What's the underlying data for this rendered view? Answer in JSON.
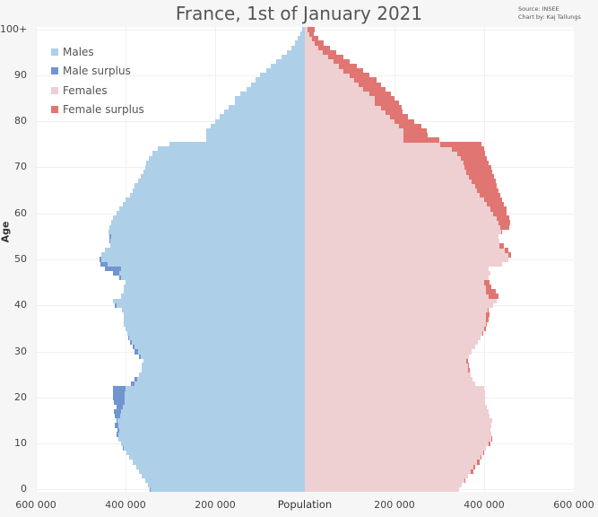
{
  "chart_data": {
    "type": "bar",
    "subtype": "population-pyramid",
    "title": "France, 1st of January 2021",
    "source_note": [
      "Source: INSEE",
      "Chart by: Kaj Tallungs"
    ],
    "xlabel": "Population",
    "ylabel": "Age",
    "x_ticks": [
      "600 000",
      "400 000",
      "200 000",
      "200 000",
      "400 000",
      "600 000"
    ],
    "x_tick_values": [
      -600000,
      -400000,
      -200000,
      200000,
      400000,
      600000
    ],
    "xlim": [
      -600000,
      600000
    ],
    "y_ticks": [
      "0",
      "10",
      "20",
      "30",
      "40",
      "50",
      "60",
      "70",
      "80",
      "90",
      "100+"
    ],
    "y_tick_values": [
      0,
      10,
      20,
      30,
      40,
      50,
      60,
      70,
      80,
      90,
      100
    ],
    "grid": true,
    "legend": [
      {
        "label": "Males",
        "color": "#aecfe8"
      },
      {
        "label": "Male surplus",
        "color": "#7195cf"
      },
      {
        "label": "Females",
        "color": "#eecfd2"
      },
      {
        "label": "Female surplus",
        "color": "#e07572"
      }
    ],
    "legend_position": "upper-left",
    "units": "persons (thousands in arrays)",
    "ages": [
      0,
      1,
      2,
      3,
      4,
      5,
      6,
      7,
      8,
      9,
      10,
      11,
      12,
      13,
      14,
      15,
      16,
      17,
      18,
      19,
      20,
      21,
      22,
      23,
      24,
      25,
      26,
      27,
      28,
      29,
      30,
      31,
      32,
      33,
      34,
      35,
      36,
      37,
      38,
      39,
      40,
      41,
      42,
      43,
      44,
      45,
      46,
      47,
      48,
      49,
      50,
      51,
      52,
      53,
      54,
      55,
      56,
      57,
      58,
      59,
      60,
      61,
      62,
      63,
      64,
      65,
      66,
      67,
      68,
      69,
      70,
      71,
      72,
      73,
      74,
      75,
      76,
      77,
      78,
      79,
      80,
      81,
      82,
      83,
      84,
      85,
      86,
      87,
      88,
      89,
      90,
      91,
      92,
      93,
      94,
      95,
      96,
      97,
      98,
      99,
      "100+"
    ],
    "series": [
      {
        "name": "Males",
        "values": [
          346,
          350,
          356,
          364,
          370,
          376,
          384,
          392,
          398,
          406,
          410,
          416,
          420,
          418,
          424,
          420,
          424,
          426,
          420,
          426,
          428,
          428,
          428,
          388,
          380,
          370,
          364,
          364,
          360,
          370,
          380,
          384,
          390,
          394,
          396,
          400,
          404,
          404,
          404,
          408,
          424,
          428,
          410,
          404,
          404,
          400,
          414,
          428,
          446,
          456,
          458,
          454,
          446,
          434,
          436,
          436,
          438,
          436,
          432,
          428,
          420,
          414,
          406,
          400,
          390,
          384,
          380,
          372,
          366,
          360,
          356,
          354,
          348,
          340,
          328,
          302,
          220,
          220,
          220,
          210,
          200,
          190,
          180,
          170,
          156,
          156,
          144,
          130,
          120,
          110,
          100,
          86,
          76,
          64,
          52,
          40,
          30,
          22,
          16,
          10,
          6
        ]
      },
      {
        "name": "Females",
        "values": [
          344,
          350,
          358,
          364,
          376,
          380,
          390,
          394,
          400,
          404,
          414,
          418,
          416,
          414,
          416,
          418,
          412,
          410,
          406,
          402,
          402,
          402,
          400,
          380,
          374,
          370,
          368,
          366,
          364,
          366,
          372,
          380,
          386,
          392,
          398,
          404,
          406,
          410,
          412,
          410,
          420,
          428,
          432,
          426,
          416,
          412,
          410,
          414,
          410,
          440,
          454,
          460,
          454,
          444,
          434,
          432,
          440,
          456,
          458,
          456,
          450,
          450,
          444,
          440,
          436,
          432,
          428,
          426,
          422,
          418,
          416,
          410,
          406,
          402,
          400,
          394,
          300,
          274,
          272,
          260,
          244,
          230,
          218,
          216,
          210,
          200,
          192,
          180,
          170,
          160,
          144,
          130,
          116,
          100,
          86,
          70,
          56,
          42,
          30,
          20,
          22
        ]
      }
    ]
  }
}
